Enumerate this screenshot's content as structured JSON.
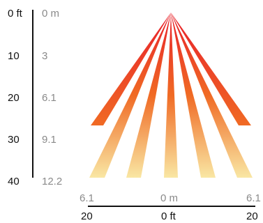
{
  "vertical_axis": {
    "ft_labels": [
      "0 ft",
      "10",
      "20",
      "30",
      "40"
    ],
    "m_labels": [
      "0 m",
      "3",
      "6.1",
      "9.1",
      "12.2"
    ]
  },
  "horizontal_axis": {
    "m_labels": [
      "6.1",
      "0 m",
      "6.1"
    ],
    "ft_labels": [
      "20",
      "0 ft",
      "20"
    ]
  },
  "beam_colors": {
    "origin": "#e8202a",
    "mid": "#f06a24",
    "end": "#f9e7a4"
  }
}
